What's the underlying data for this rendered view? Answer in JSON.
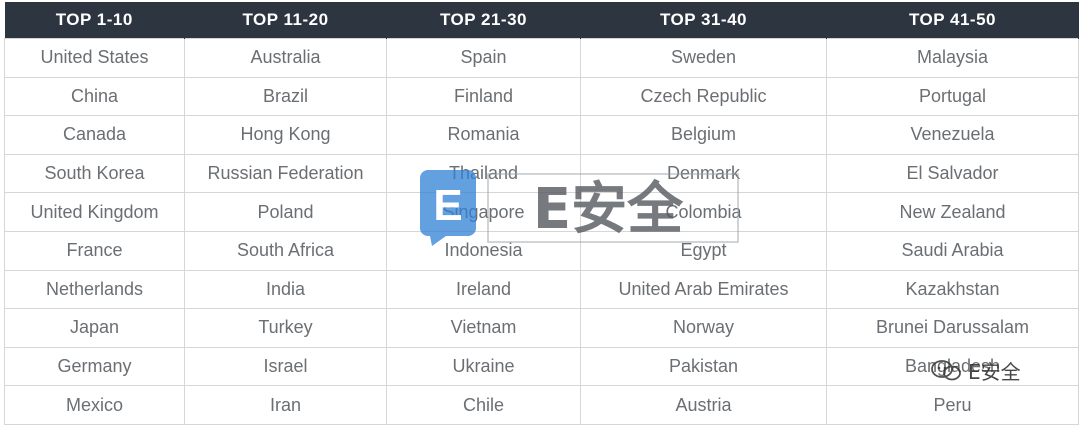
{
  "headers": [
    "TOP 1-10",
    "TOP 11-20",
    "TOP 21-30",
    "TOP 31-40",
    "TOP 41-50"
  ],
  "rows": [
    [
      "United States",
      "Australia",
      "Spain",
      "Sweden",
      "Malaysia"
    ],
    [
      "China",
      "Brazil",
      "Finland",
      "Czech Republic",
      "Portugal"
    ],
    [
      "Canada",
      "Hong Kong",
      "Romania",
      "Belgium",
      "Venezuela"
    ],
    [
      "South Korea",
      "Russian Federation",
      "Thailand",
      "Denmark",
      "El Salvador"
    ],
    [
      "United Kingdom",
      "Poland",
      "Singapore",
      "Colombia",
      "New Zealand"
    ],
    [
      "France",
      "South Africa",
      "Indonesia",
      "Egypt",
      "Saudi Arabia"
    ],
    [
      "Netherlands",
      "India",
      "Ireland",
      "United Arab Emirates",
      "Kazakhstan"
    ],
    [
      "Japan",
      "Turkey",
      "Vietnam",
      "Norway",
      "Brunei Darussalam"
    ],
    [
      "Germany",
      "Israel",
      "Ukraine",
      "Pakistan",
      "Bangladesh"
    ],
    [
      "Mexico",
      "Iran",
      "Chile",
      "Austria",
      "Peru"
    ]
  ],
  "watermark": {
    "logo_letter": "E",
    "logo_text": "E安全",
    "corner_text": "E安全",
    "icon": "wechat-icon"
  },
  "colors": {
    "header_bg": "#2d3540",
    "header_text": "#ffffff",
    "cell_text": "#6b6f73",
    "grid": "#d6d6d6",
    "logo_blue": "#2f80d6"
  }
}
